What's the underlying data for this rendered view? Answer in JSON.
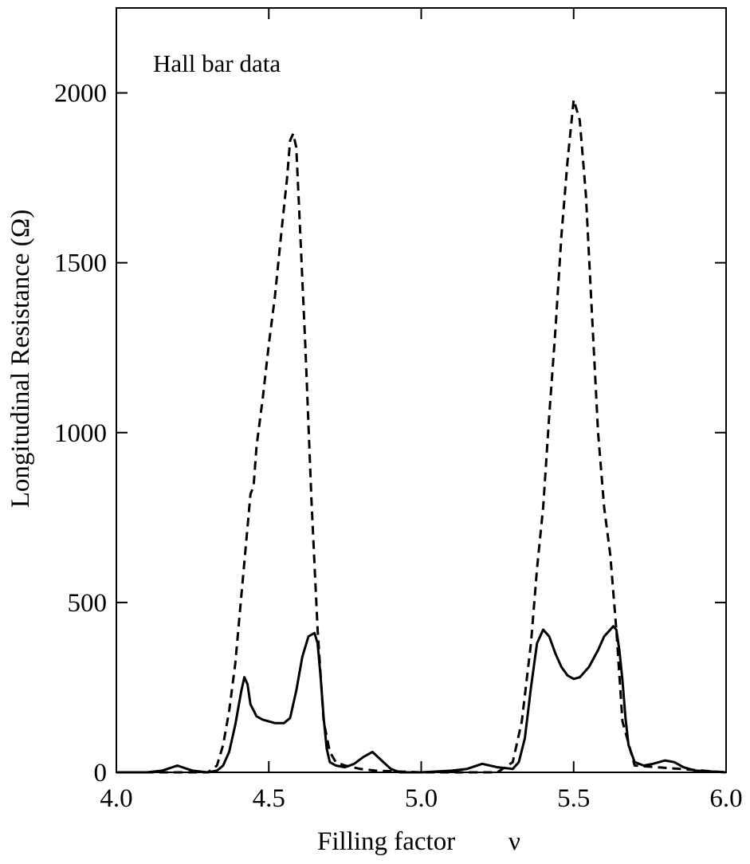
{
  "chart_data": {
    "type": "line",
    "title": "",
    "annotation": "Hall bar data",
    "xlabel": "Filling factor",
    "xlabel_symbol": "ν",
    "ylabel": "Longitudinal Resistance (Ω)",
    "xlim": [
      4.0,
      6.0
    ],
    "ylim": [
      0,
      2250
    ],
    "xticks": [
      4.0,
      4.5,
      5.0,
      5.5,
      6.0
    ],
    "xtick_labels": [
      "4.0",
      "4.5",
      "5.0",
      "5.5",
      "6.0"
    ],
    "yticks": [
      0,
      500,
      1000,
      1500,
      2000
    ],
    "ytick_labels": [
      "0",
      "500",
      "1000",
      "1500",
      "2000"
    ],
    "grid": false,
    "legend": "none",
    "series": [
      {
        "style": "dashed",
        "color": "#000000",
        "x": [
          4.0,
          4.3,
          4.33,
          4.35,
          4.37,
          4.39,
          4.41,
          4.43,
          4.44,
          4.45,
          4.46,
          4.48,
          4.5,
          4.52,
          4.54,
          4.56,
          4.57,
          4.58,
          4.59,
          4.6,
          4.62,
          4.64,
          4.66,
          4.68,
          4.7,
          4.72,
          4.75,
          4.8,
          4.85,
          5.0,
          5.25,
          5.3,
          5.33,
          5.36,
          5.38,
          5.4,
          5.42,
          5.44,
          5.46,
          5.48,
          5.5,
          5.52,
          5.54,
          5.56,
          5.58,
          5.6,
          5.62,
          5.64,
          5.66,
          5.7,
          6.0
        ],
        "y": [
          0,
          0,
          20,
          80,
          180,
          320,
          520,
          720,
          820,
          840,
          960,
          1100,
          1260,
          1400,
          1580,
          1750,
          1860,
          1880,
          1840,
          1650,
          1250,
          800,
          420,
          150,
          60,
          30,
          20,
          10,
          5,
          0,
          0,
          30,
          150,
          380,
          600,
          780,
          1050,
          1300,
          1580,
          1800,
          1980,
          1920,
          1700,
          1350,
          1000,
          780,
          640,
          420,
          150,
          20,
          0
        ]
      },
      {
        "style": "solid",
        "color": "#000000",
        "x": [
          4.0,
          4.1,
          4.15,
          4.2,
          4.25,
          4.3,
          4.33,
          4.35,
          4.37,
          4.39,
          4.41,
          4.42,
          4.43,
          4.44,
          4.46,
          4.48,
          4.5,
          4.52,
          4.55,
          4.57,
          4.59,
          4.61,
          4.63,
          4.65,
          4.66,
          4.67,
          4.68,
          4.69,
          4.7,
          4.72,
          4.75,
          4.78,
          4.81,
          4.84,
          4.87,
          4.9,
          4.93,
          5.0,
          5.1,
          5.15,
          5.2,
          5.25,
          5.3,
          5.32,
          5.34,
          5.36,
          5.38,
          5.4,
          5.42,
          5.44,
          5.46,
          5.48,
          5.5,
          5.52,
          5.55,
          5.58,
          5.6,
          5.62,
          5.63,
          5.64,
          5.65,
          5.66,
          5.67,
          5.68,
          5.7,
          5.73,
          5.76,
          5.8,
          5.83,
          5.86,
          5.9,
          6.0
        ],
        "y": [
          0,
          0,
          5,
          20,
          5,
          0,
          5,
          20,
          60,
          140,
          240,
          280,
          260,
          200,
          165,
          155,
          150,
          145,
          145,
          160,
          240,
          340,
          400,
          410,
          380,
          280,
          160,
          70,
          30,
          20,
          15,
          25,
          45,
          60,
          35,
          10,
          0,
          0,
          5,
          10,
          25,
          15,
          10,
          30,
          100,
          250,
          380,
          420,
          400,
          350,
          310,
          285,
          275,
          280,
          310,
          360,
          400,
          420,
          430,
          420,
          360,
          270,
          160,
          80,
          30,
          20,
          25,
          35,
          30,
          15,
          5,
          0
        ]
      }
    ]
  }
}
